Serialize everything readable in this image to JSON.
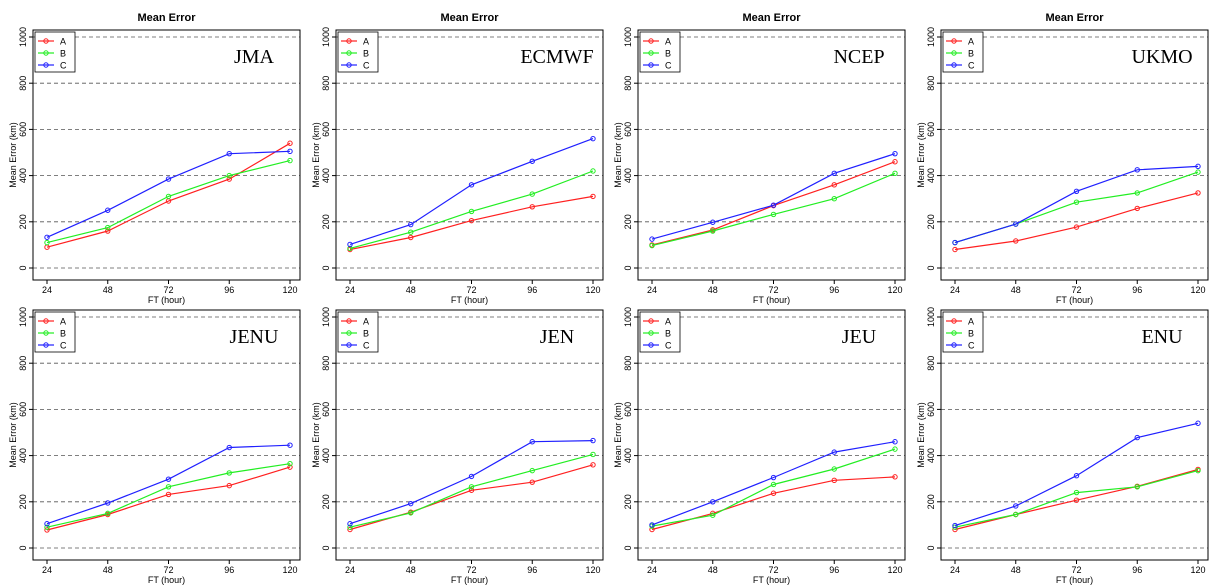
{
  "colors": {
    "A": "#ff2020",
    "B": "#22ee22",
    "C": "#2020ff",
    "grid": "#555555",
    "axis": "#000000"
  },
  "chart_data": [
    {
      "type": "line",
      "title": "Mean Error",
      "model": "JMA",
      "xlabel": "FT (hour)",
      "ylabel": "Mean Error (km)",
      "x": [
        24,
        48,
        72,
        96,
        120
      ],
      "ylim": [
        0,
        1000
      ],
      "yticks": [
        0,
        200,
        400,
        600,
        800,
        1000
      ],
      "grid": "dashed horizontal",
      "legend": "top-left",
      "series": [
        {
          "name": "A",
          "values": [
            90,
            160,
            290,
            385,
            540
          ]
        },
        {
          "name": "B",
          "values": [
            110,
            175,
            310,
            400,
            465
          ]
        },
        {
          "name": "C",
          "values": [
            133,
            250,
            385,
            495,
            505
          ]
        }
      ]
    },
    {
      "type": "line",
      "title": "Mean Error",
      "model": "ECMWF",
      "xlabel": "FT (hour)",
      "ylabel": "Mean Error (km)",
      "x": [
        24,
        48,
        72,
        96,
        120
      ],
      "ylim": [
        0,
        1000
      ],
      "yticks": [
        0,
        200,
        400,
        600,
        800,
        1000
      ],
      "grid": "dashed horizontal",
      "legend": "top-left",
      "series": [
        {
          "name": "A",
          "values": [
            80,
            132,
            205,
            265,
            310
          ]
        },
        {
          "name": "B",
          "values": [
            85,
            155,
            245,
            320,
            420
          ]
        },
        {
          "name": "C",
          "values": [
            102,
            188,
            360,
            462,
            560
          ]
        }
      ]
    },
    {
      "type": "line",
      "title": "Mean Error",
      "model": "NCEP",
      "xlabel": "FT (hour)",
      "ylabel": "Mean Error (km)",
      "x": [
        24,
        48,
        72,
        96,
        120
      ],
      "ylim": [
        0,
        1000
      ],
      "yticks": [
        0,
        200,
        400,
        600,
        800,
        1000
      ],
      "grid": "dashed horizontal",
      "legend": "top-left",
      "series": [
        {
          "name": "A",
          "values": [
            100,
            165,
            270,
            360,
            460
          ]
        },
        {
          "name": "B",
          "values": [
            97,
            160,
            232,
            300,
            410
          ]
        },
        {
          "name": "C",
          "values": [
            125,
            198,
            272,
            410,
            495
          ]
        }
      ]
    },
    {
      "type": "line",
      "title": "Mean Error",
      "model": "UKMO",
      "xlabel": "FT (hour)",
      "ylabel": "Mean Error (km)",
      "x": [
        24,
        48,
        72,
        96,
        120
      ],
      "ylim": [
        0,
        1000
      ],
      "yticks": [
        0,
        200,
        400,
        600,
        800,
        1000
      ],
      "grid": "dashed horizontal",
      "legend": "top-left",
      "series": [
        {
          "name": "A",
          "values": [
            80,
            117,
            177,
            258,
            325
          ]
        },
        {
          "name": "B",
          "values": [
            110,
            190,
            285,
            325,
            415
          ]
        },
        {
          "name": "C",
          "values": [
            110,
            190,
            332,
            425,
            440
          ]
        }
      ]
    },
    {
      "type": "line",
      "title": "",
      "model": "JENU",
      "xlabel": "FT (hour)",
      "ylabel": "Mean Error (km)",
      "x": [
        24,
        48,
        72,
        96,
        120
      ],
      "ylim": [
        0,
        1000
      ],
      "yticks": [
        0,
        200,
        400,
        600,
        800,
        1000
      ],
      "grid": "dashed horizontal",
      "legend": "top-left",
      "series": [
        {
          "name": "A",
          "values": [
            78,
            145,
            232,
            270,
            350
          ]
        },
        {
          "name": "B",
          "values": [
            90,
            150,
            265,
            325,
            365
          ]
        },
        {
          "name": "C",
          "values": [
            105,
            195,
            298,
            435,
            445
          ]
        }
      ]
    },
    {
      "type": "line",
      "title": "",
      "model": "JEN",
      "xlabel": "FT (hour)",
      "ylabel": "Mean Error (km)",
      "x": [
        24,
        48,
        72,
        96,
        120
      ],
      "ylim": [
        0,
        1000
      ],
      "yticks": [
        0,
        200,
        400,
        600,
        800,
        1000
      ],
      "grid": "dashed horizontal",
      "legend": "top-left",
      "series": [
        {
          "name": "A",
          "values": [
            80,
            155,
            250,
            285,
            360
          ]
        },
        {
          "name": "B",
          "values": [
            90,
            152,
            265,
            335,
            405
          ]
        },
        {
          "name": "C",
          "values": [
            105,
            192,
            310,
            460,
            465
          ]
        }
      ]
    },
    {
      "type": "line",
      "title": "",
      "model": "JEU",
      "xlabel": "FT (hour)",
      "ylabel": "Mean Error (km)",
      "x": [
        24,
        48,
        72,
        96,
        120
      ],
      "ylim": [
        0,
        1000
      ],
      "yticks": [
        0,
        200,
        400,
        600,
        800,
        1000
      ],
      "grid": "dashed horizontal",
      "legend": "top-left",
      "series": [
        {
          "name": "A",
          "values": [
            80,
            150,
            237,
            293,
            308
          ]
        },
        {
          "name": "B",
          "values": [
            95,
            142,
            275,
            342,
            428
          ]
        },
        {
          "name": "C",
          "values": [
            100,
            200,
            305,
            415,
            460
          ]
        }
      ]
    },
    {
      "type": "line",
      "title": "",
      "model": "ENU",
      "xlabel": "FT (hour)",
      "ylabel": "Mean Error (km)",
      "x": [
        24,
        48,
        72,
        96,
        120
      ],
      "ylim": [
        0,
        1000
      ],
      "yticks": [
        0,
        200,
        400,
        600,
        800,
        1000
      ],
      "grid": "dashed horizontal",
      "legend": "top-left",
      "series": [
        {
          "name": "A",
          "values": [
            80,
            145,
            207,
            267,
            340
          ]
        },
        {
          "name": "B",
          "values": [
            90,
            145,
            240,
            265,
            335
          ]
        },
        {
          "name": "C",
          "values": [
            97,
            182,
            313,
            478,
            540
          ]
        }
      ]
    }
  ]
}
